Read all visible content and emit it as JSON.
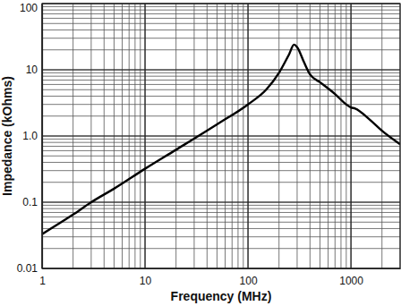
{
  "chart_data": {
    "type": "line",
    "x_label": "Frequency (MHz)",
    "y_label": "Impedance (kOhms)",
    "x": [
      1,
      2,
      3,
      5,
      10,
      20,
      50,
      100,
      150,
      200,
      250,
      280,
      300,
      350,
      400,
      500,
      700,
      900,
      1000,
      1100,
      1500,
      2000,
      3000
    ],
    "values": [
      0.033,
      0.065,
      0.1,
      0.16,
      0.32,
      0.62,
      1.5,
      3.0,
      5.0,
      9.0,
      17,
      24,
      22,
      13,
      8.5,
      6.5,
      4.3,
      3.0,
      2.7,
      2.6,
      1.8,
      1.2,
      0.75
    ],
    "color": "#000000",
    "log": true,
    "grid": true,
    "xlim": [
      1,
      3000
    ],
    "ylim": [
      0.01,
      100
    ],
    "xticks": [
      1,
      10,
      100,
      1000
    ],
    "yticks": [
      0.01,
      0.1,
      {
        "value": 1,
        "label": "1.0"
      },
      10,
      100
    ]
  }
}
